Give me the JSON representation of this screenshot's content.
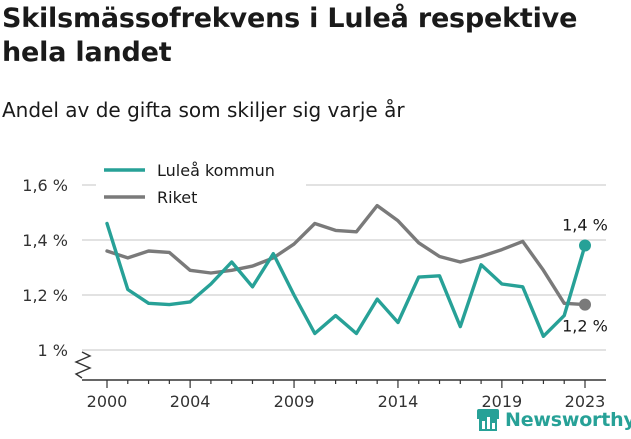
{
  "header": {
    "title": "Skilsmässofrekvens i Luleå respektive hela landet",
    "subtitle": "Andel av de gifta som skiljer sig varje år"
  },
  "brand": {
    "name": "Newsworthy",
    "icon": "newsworthy-chart-icon",
    "color": "#27a197"
  },
  "chart_data": {
    "type": "line",
    "title": "Skilsmässofrekvens i Luleå respektive hela landet",
    "subtitle": "Andel av de gifta som skiljer sig varje år",
    "x": [
      2000,
      2001,
      2002,
      2003,
      2004,
      2005,
      2006,
      2007,
      2008,
      2009,
      2010,
      2011,
      2012,
      2013,
      2014,
      2015,
      2016,
      2017,
      2018,
      2019,
      2020,
      2021,
      2022,
      2023
    ],
    "x_ticks": [
      2000,
      2004,
      2009,
      2014,
      2019,
      2023
    ],
    "y_ticks": [
      {
        "value": 1.0,
        "label": "1 %"
      },
      {
        "value": 1.2,
        "label": "1,2 %"
      },
      {
        "value": 1.4,
        "label": "1,4 %"
      },
      {
        "value": 1.6,
        "label": "1,6 %"
      }
    ],
    "ylim": [
      0.93,
      1.6
    ],
    "y_axis_break": true,
    "grid": true,
    "legend_position": "top-left",
    "series": [
      {
        "name": "Luleå kommun",
        "color": "#27a197",
        "values": [
          1.46,
          1.22,
          1.17,
          1.165,
          1.175,
          1.24,
          1.32,
          1.23,
          1.35,
          1.2,
          1.06,
          1.125,
          1.06,
          1.185,
          1.1,
          1.265,
          1.27,
          1.085,
          1.31,
          1.24,
          1.23,
          1.05,
          1.125,
          1.38
        ],
        "end_label": "1,4 %"
      },
      {
        "name": "Riket",
        "color": "#7a7a7a",
        "values": [
          1.36,
          1.335,
          1.36,
          1.355,
          1.29,
          1.28,
          1.29,
          1.305,
          1.335,
          1.385,
          1.46,
          1.435,
          1.43,
          1.525,
          1.47,
          1.39,
          1.34,
          1.32,
          1.34,
          1.365,
          1.395,
          1.29,
          1.17,
          1.165
        ],
        "end_label": "1,2 %"
      }
    ]
  }
}
